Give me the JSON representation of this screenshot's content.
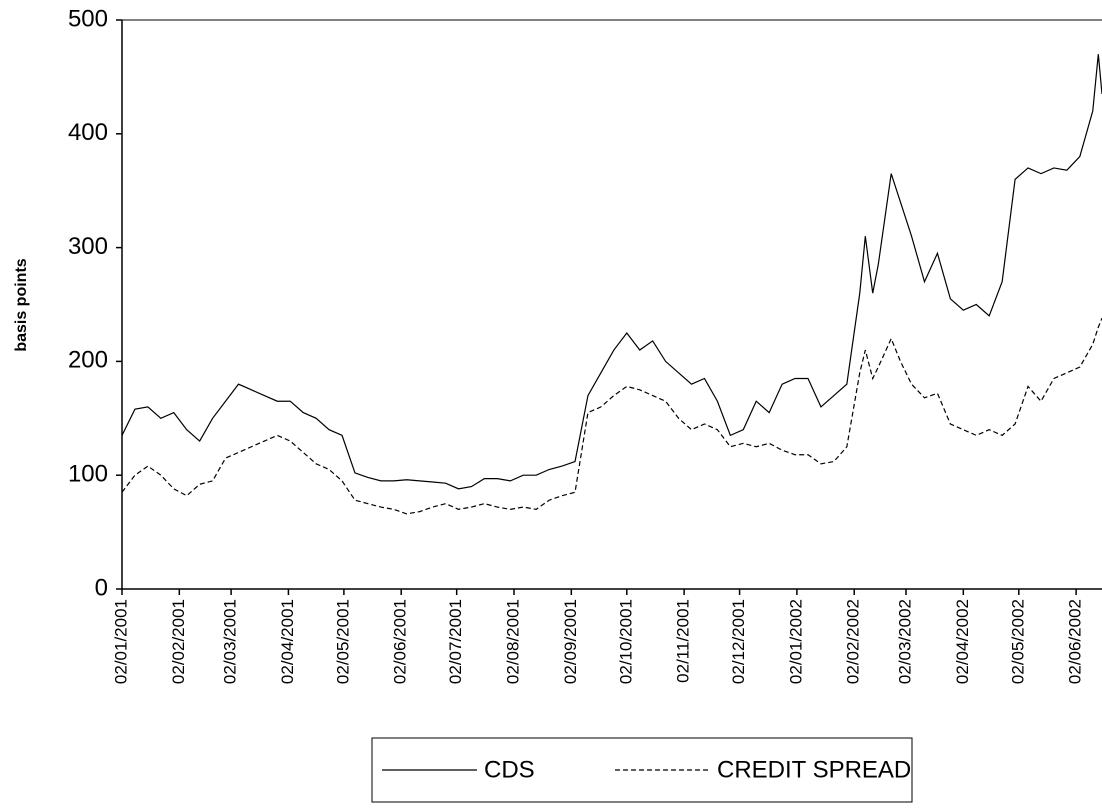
{
  "chart_data": {
    "type": "line",
    "y_label": "basis points",
    "ylim": [
      0,
      500
    ],
    "yticks": [
      0,
      100,
      200,
      300,
      400,
      500
    ],
    "xlim": [
      "02/01/2001",
      "16/06/2002"
    ],
    "xticks": [
      "02/01/2001",
      "02/02/2001",
      "02/03/2001",
      "02/04/2001",
      "02/05/2001",
      "02/06/2001",
      "02/07/2001",
      "02/08/2001",
      "02/09/2001",
      "02/10/2001",
      "02/11/2001",
      "02/12/2001",
      "02/01/2002",
      "02/02/2002",
      "02/03/2002",
      "02/04/2002",
      "02/05/2002",
      "02/06/2002"
    ],
    "x": [
      "02/01/2001",
      "09/01/2001",
      "16/01/2001",
      "23/01/2001",
      "30/01/2001",
      "06/02/2001",
      "13/02/2001",
      "20/02/2001",
      "27/02/2001",
      "06/03/2001",
      "13/03/2001",
      "20/03/2001",
      "27/03/2001",
      "03/04/2001",
      "10/04/2001",
      "17/04/2001",
      "24/04/2001",
      "01/05/2001",
      "08/05/2001",
      "15/05/2001",
      "22/05/2001",
      "29/05/2001",
      "05/06/2001",
      "12/06/2001",
      "19/06/2001",
      "26/06/2001",
      "03/07/2001",
      "10/07/2001",
      "17/07/2001",
      "24/07/2001",
      "31/07/2001",
      "07/08/2001",
      "14/08/2001",
      "21/08/2001",
      "28/08/2001",
      "04/09/2001",
      "11/09/2001",
      "18/09/2001",
      "25/09/2001",
      "02/10/2001",
      "09/10/2001",
      "16/10/2001",
      "23/10/2001",
      "30/10/2001",
      "06/11/2001",
      "13/11/2001",
      "20/11/2001",
      "27/11/2001",
      "04/12/2001",
      "11/12/2001",
      "18/12/2001",
      "25/12/2001",
      "01/01/2002",
      "08/01/2002",
      "15/01/2002",
      "22/01/2002",
      "29/01/2002",
      "05/02/2002",
      "08/02/2002",
      "12/02/2002",
      "15/02/2002",
      "22/02/2002",
      "27/02/2002",
      "05/03/2002",
      "12/03/2002",
      "19/03/2002",
      "26/03/2002",
      "02/04/2002",
      "09/04/2002",
      "16/04/2002",
      "23/04/2002",
      "30/04/2002",
      "07/05/2002",
      "14/05/2002",
      "21/05/2002",
      "28/05/2002",
      "04/06/2002",
      "11/06/2002",
      "14/06/2002",
      "16/06/2002"
    ],
    "series": [
      {
        "name": "CDS",
        "color": "#000000",
        "style": "solid",
        "values": [
          135,
          158,
          160,
          150,
          155,
          140,
          130,
          150,
          165,
          180,
          175,
          170,
          165,
          165,
          155,
          150,
          140,
          135,
          102,
          98,
          95,
          95,
          96,
          95,
          94,
          93,
          88,
          90,
          97,
          97,
          95,
          100,
          100,
          105,
          108,
          112,
          170,
          190,
          210,
          225,
          210,
          218,
          200,
          190,
          180,
          185,
          165,
          135,
          140,
          165,
          155,
          180,
          185,
          185,
          160,
          170,
          180,
          260,
          310,
          260,
          285,
          365,
          340,
          310,
          270,
          295,
          255,
          245,
          250,
          240,
          270,
          360,
          370,
          365,
          370,
          368,
          380,
          420,
          470,
          435
        ]
      },
      {
        "name": "CREDIT SPREAD",
        "color": "#000000",
        "style": "dashed",
        "values": [
          85,
          100,
          108,
          100,
          88,
          82,
          92,
          95,
          115,
          120,
          125,
          130,
          135,
          130,
          120,
          110,
          105,
          95,
          78,
          75,
          72,
          70,
          66,
          68,
          72,
          75,
          70,
          72,
          75,
          72,
          70,
          72,
          70,
          78,
          82,
          85,
          155,
          160,
          170,
          178,
          175,
          170,
          165,
          150,
          140,
          145,
          140,
          125,
          128,
          125,
          128,
          122,
          118,
          118,
          110,
          112,
          125,
          190,
          210,
          185,
          195,
          220,
          200,
          180,
          168,
          172,
          145,
          140,
          135,
          140,
          135,
          145,
          178,
          165,
          185,
          190,
          195,
          215,
          230,
          238
        ]
      }
    ]
  }
}
